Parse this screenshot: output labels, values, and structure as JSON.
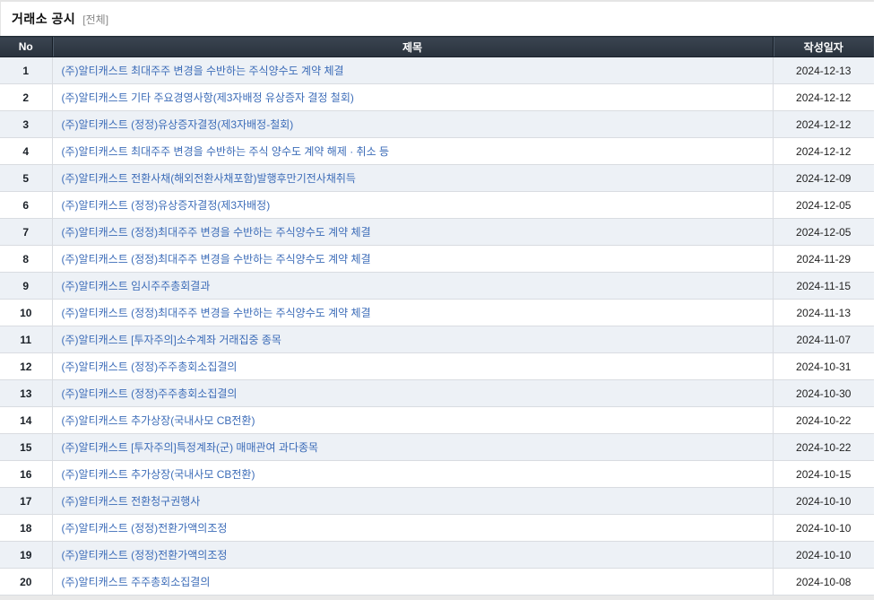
{
  "page": {
    "title": "거래소 공시",
    "filter": "[전체]"
  },
  "table": {
    "columns": {
      "no": "No",
      "title": "제목",
      "date": "작성일자"
    },
    "rows": [
      {
        "no": "1",
        "title": "(주)알티캐스트 최대주주 변경을 수반하는 주식양수도 계약 체결",
        "date": "2024-12-13"
      },
      {
        "no": "2",
        "title": "(주)알티캐스트 기타 주요경영사항(제3자배정 유상증자 결정 철회)",
        "date": "2024-12-12"
      },
      {
        "no": "3",
        "title": "(주)알티캐스트 (정정)유상증자결정(제3자배정-철회)",
        "date": "2024-12-12"
      },
      {
        "no": "4",
        "title": "(주)알티캐스트 최대주주 변경을 수반하는 주식 양수도 계약 해제 · 취소 등",
        "date": "2024-12-12"
      },
      {
        "no": "5",
        "title": "(주)알티캐스트 전환사채(해외전환사채포함)발행후만기전사채취득",
        "date": "2024-12-09"
      },
      {
        "no": "6",
        "title": "(주)알티캐스트 (정정)유상증자결정(제3자배정)",
        "date": "2024-12-05"
      },
      {
        "no": "7",
        "title": "(주)알티캐스트 (정정)최대주주 변경을 수반하는 주식양수도 계약 체결",
        "date": "2024-12-05"
      },
      {
        "no": "8",
        "title": "(주)알티캐스트 (정정)최대주주 변경을 수반하는 주식양수도 계약 체결",
        "date": "2024-11-29"
      },
      {
        "no": "9",
        "title": "(주)알티캐스트 임시주주총회결과",
        "date": "2024-11-15"
      },
      {
        "no": "10",
        "title": "(주)알티캐스트 (정정)최대주주 변경을 수반하는 주식양수도 계약 체결",
        "date": "2024-11-13"
      },
      {
        "no": "11",
        "title": "(주)알티캐스트 [투자주의]소수계좌 거래집중 종목",
        "date": "2024-11-07"
      },
      {
        "no": "12",
        "title": "(주)알티캐스트 (정정)주주총회소집결의",
        "date": "2024-10-31"
      },
      {
        "no": "13",
        "title": "(주)알티캐스트 (정정)주주총회소집결의",
        "date": "2024-10-30"
      },
      {
        "no": "14",
        "title": "(주)알티캐스트 추가상장(국내사모 CB전환)",
        "date": "2024-10-22"
      },
      {
        "no": "15",
        "title": "(주)알티캐스트 [투자주의]특정계좌(군) 매매관여 과다종목",
        "date": "2024-10-22"
      },
      {
        "no": "16",
        "title": "(주)알티캐스트 추가상장(국내사모 CB전환)",
        "date": "2024-10-15"
      },
      {
        "no": "17",
        "title": "(주)알티캐스트 전환청구권행사",
        "date": "2024-10-10"
      },
      {
        "no": "18",
        "title": "(주)알티캐스트 (정정)전환가액의조정",
        "date": "2024-10-10"
      },
      {
        "no": "19",
        "title": "(주)알티캐스트 (정정)전환가액의조정",
        "date": "2024-10-10"
      },
      {
        "no": "20",
        "title": "(주)알티캐스트 주주총회소집결의",
        "date": "2024-10-08"
      }
    ]
  },
  "colors": {
    "header_bg": "#2d3844",
    "header_text": "#ffffff",
    "row_alt_bg": "#edf1f6",
    "row_bg": "#ffffff",
    "link": "#3c6cb8",
    "border": "#d9dce1"
  }
}
